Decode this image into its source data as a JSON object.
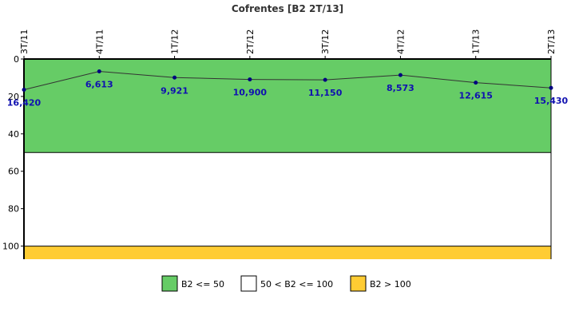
{
  "chart_data": {
    "type": "line",
    "title": "Cofrentes [B2 2T/13]",
    "xlabel": "",
    "ylabel": "",
    "categories": [
      "3T/11",
      "4T/11",
      "1T/12",
      "2T/12",
      "3T/12",
      "4T/12",
      "1T/13",
      "2T/13"
    ],
    "series": [
      {
        "values": [
          16.42,
          6.613,
          9.921,
          10.9,
          11.15,
          8.573,
          12.615,
          15.43
        ],
        "labels": [
          "16,420",
          "6,613",
          "9,921",
          "10,900",
          "11,150",
          "8,573",
          "12,615",
          "15,430"
        ],
        "color": "#000080"
      }
    ],
    "ylim": [
      0,
      107
    ],
    "y_inverted": true,
    "x_axis_position": "top",
    "yticks": [
      0,
      20,
      40,
      60,
      80,
      100
    ],
    "ytick_labels": [
      "0",
      "20",
      "40",
      "60",
      "80",
      "100"
    ],
    "grid": false,
    "bands": [
      {
        "from": 0,
        "to": 50,
        "color": "#66cc66"
      },
      {
        "from": 50,
        "to": 100,
        "color": "#ffffff"
      },
      {
        "from": 100,
        "to": 107,
        "color": "#ffcc33"
      }
    ],
    "legend": {
      "position": "bottom-center",
      "items": [
        {
          "label": "B2 <= 50",
          "color": "#66cc66"
        },
        {
          "label": "50 < B2 <= 100",
          "color": "#ffffff"
        },
        {
          "label": "B2 > 100",
          "color": "#ffcc33"
        }
      ]
    }
  }
}
